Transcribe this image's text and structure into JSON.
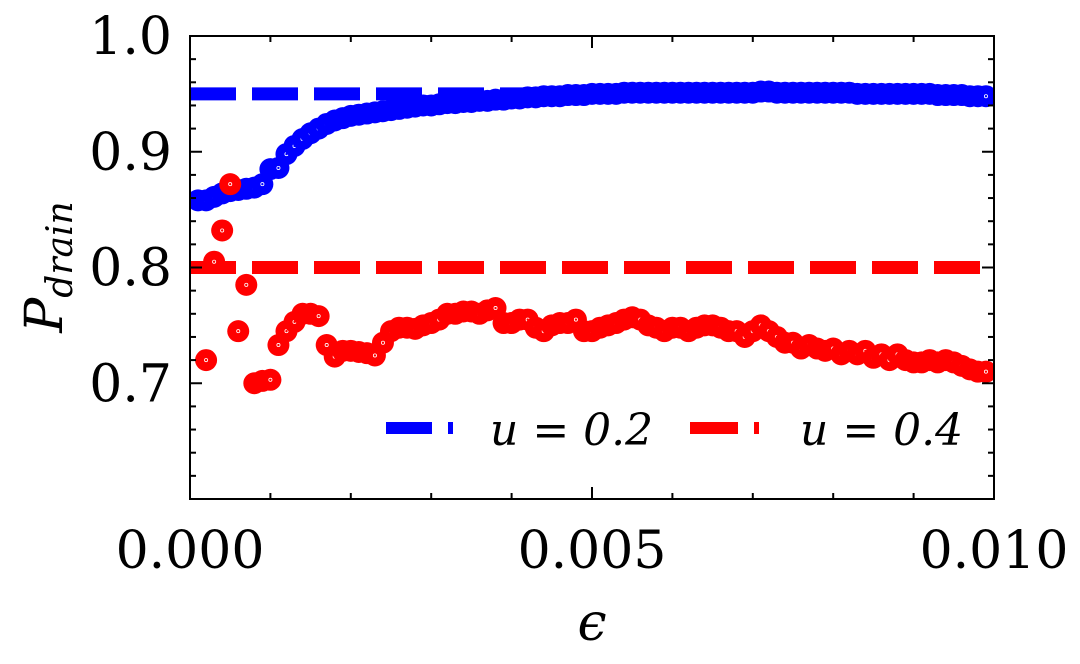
{
  "chart_data": {
    "type": "scatter",
    "title": "",
    "xlabel": "ϵ",
    "ylabel_main": "P",
    "ylabel_sub": "drain",
    "xlim": [
      0.0,
      0.01
    ],
    "ylim": [
      0.6,
      1.0
    ],
    "x_ticks": [
      0.0,
      0.005,
      0.01
    ],
    "x_tick_labels": [
      "0.000",
      "0.005",
      "0.010"
    ],
    "y_ticks": [
      0.7,
      0.8,
      0.9,
      1.0
    ],
    "y_tick_labels": [
      "0.7",
      "0.8",
      "0.9",
      "1.0"
    ],
    "grid": false,
    "legend_position": "bottom-right",
    "series": [
      {
        "name": "u=0.2",
        "legend_label": "u = 0.2",
        "color": "#0000ff",
        "reference_line": 0.95,
        "points": [
          [
            0.0001,
            0.858
          ],
          [
            0.0002,
            0.858
          ],
          [
            0.0003,
            0.861
          ],
          [
            0.0004,
            0.864
          ],
          [
            0.0005,
            0.866
          ],
          [
            0.0006,
            0.867
          ],
          [
            0.0007,
            0.868
          ],
          [
            0.0008,
            0.869
          ],
          [
            0.0009,
            0.872
          ],
          [
            0.001,
            0.885
          ],
          [
            0.0011,
            0.886
          ],
          [
            0.0012,
            0.898
          ],
          [
            0.0013,
            0.905
          ],
          [
            0.0014,
            0.911
          ],
          [
            0.0015,
            0.916
          ],
          [
            0.0016,
            0.92
          ],
          [
            0.0017,
            0.924
          ],
          [
            0.0018,
            0.927
          ],
          [
            0.0019,
            0.929
          ],
          [
            0.002,
            0.931
          ],
          [
            0.0021,
            0.932
          ],
          [
            0.0022,
            0.933
          ],
          [
            0.0023,
            0.934
          ],
          [
            0.0024,
            0.935
          ],
          [
            0.0025,
            0.936
          ],
          [
            0.0026,
            0.937
          ],
          [
            0.0027,
            0.938
          ],
          [
            0.0028,
            0.939
          ],
          [
            0.0029,
            0.94
          ],
          [
            0.003,
            0.94
          ],
          [
            0.0031,
            0.941
          ],
          [
            0.0032,
            0.942
          ],
          [
            0.0033,
            0.942
          ],
          [
            0.0034,
            0.943
          ],
          [
            0.0035,
            0.943
          ],
          [
            0.0036,
            0.944
          ],
          [
            0.0037,
            0.944
          ],
          [
            0.0038,
            0.945
          ],
          [
            0.0039,
            0.945
          ],
          [
            0.004,
            0.946
          ],
          [
            0.0041,
            0.946
          ],
          [
            0.0042,
            0.947
          ],
          [
            0.0043,
            0.947
          ],
          [
            0.0044,
            0.948
          ],
          [
            0.0045,
            0.948
          ],
          [
            0.0046,
            0.948
          ],
          [
            0.0047,
            0.949
          ],
          [
            0.0048,
            0.949
          ],
          [
            0.0049,
            0.949
          ],
          [
            0.005,
            0.95
          ],
          [
            0.0051,
            0.95
          ],
          [
            0.0052,
            0.95
          ],
          [
            0.0053,
            0.95
          ],
          [
            0.0054,
            0.951
          ],
          [
            0.0055,
            0.951
          ],
          [
            0.0056,
            0.951
          ],
          [
            0.0057,
            0.951
          ],
          [
            0.0058,
            0.951
          ],
          [
            0.0059,
            0.951
          ],
          [
            0.006,
            0.951
          ],
          [
            0.0061,
            0.951
          ],
          [
            0.0062,
            0.951
          ],
          [
            0.0063,
            0.951
          ],
          [
            0.0064,
            0.951
          ],
          [
            0.0065,
            0.951
          ],
          [
            0.0066,
            0.951
          ],
          [
            0.0067,
            0.951
          ],
          [
            0.0068,
            0.951
          ],
          [
            0.0069,
            0.951
          ],
          [
            0.007,
            0.951
          ],
          [
            0.0071,
            0.952
          ],
          [
            0.0072,
            0.952
          ],
          [
            0.0073,
            0.951
          ],
          [
            0.0074,
            0.951
          ],
          [
            0.0075,
            0.951
          ],
          [
            0.0076,
            0.951
          ],
          [
            0.0077,
            0.951
          ],
          [
            0.0078,
            0.951
          ],
          [
            0.0079,
            0.951
          ],
          [
            0.008,
            0.951
          ],
          [
            0.0081,
            0.951
          ],
          [
            0.0082,
            0.951
          ],
          [
            0.0083,
            0.95
          ],
          [
            0.0084,
            0.95
          ],
          [
            0.0085,
            0.95
          ],
          [
            0.0086,
            0.95
          ],
          [
            0.0087,
            0.95
          ],
          [
            0.0088,
            0.95
          ],
          [
            0.0089,
            0.95
          ],
          [
            0.009,
            0.95
          ],
          [
            0.0091,
            0.95
          ],
          [
            0.0092,
            0.95
          ],
          [
            0.0093,
            0.949
          ],
          [
            0.0094,
            0.949
          ],
          [
            0.0095,
            0.949
          ],
          [
            0.0096,
            0.949
          ],
          [
            0.0097,
            0.948
          ],
          [
            0.0098,
            0.948
          ],
          [
            0.0099,
            0.948
          ]
        ]
      },
      {
        "name": "u=0.4",
        "legend_label": "u = 0.4",
        "color": "#ff0000",
        "reference_line": 0.8,
        "points": [
          [
            0.0002,
            0.72
          ],
          [
            0.0003,
            0.805
          ],
          [
            0.0004,
            0.832
          ],
          [
            0.0005,
            0.872
          ],
          [
            0.0006,
            0.745
          ],
          [
            0.0007,
            0.785
          ],
          [
            0.0008,
            0.7
          ],
          [
            0.0009,
            0.702
          ],
          [
            0.001,
            0.703
          ],
          [
            0.0011,
            0.733
          ],
          [
            0.0012,
            0.745
          ],
          [
            0.0013,
            0.753
          ],
          [
            0.0014,
            0.76
          ],
          [
            0.0015,
            0.76
          ],
          [
            0.0016,
            0.758
          ],
          [
            0.0017,
            0.733
          ],
          [
            0.0018,
            0.723
          ],
          [
            0.0019,
            0.728
          ],
          [
            0.002,
            0.728
          ],
          [
            0.0021,
            0.727
          ],
          [
            0.0022,
            0.726
          ],
          [
            0.0023,
            0.724
          ],
          [
            0.0024,
            0.735
          ],
          [
            0.0025,
            0.745
          ],
          [
            0.0026,
            0.748
          ],
          [
            0.0027,
            0.748
          ],
          [
            0.0028,
            0.747
          ],
          [
            0.0029,
            0.75
          ],
          [
            0.003,
            0.752
          ],
          [
            0.0031,
            0.755
          ],
          [
            0.0032,
            0.76
          ],
          [
            0.0033,
            0.76
          ],
          [
            0.0034,
            0.762
          ],
          [
            0.0035,
            0.762
          ],
          [
            0.0036,
            0.76
          ],
          [
            0.0037,
            0.763
          ],
          [
            0.0038,
            0.765
          ],
          [
            0.0039,
            0.752
          ],
          [
            0.004,
            0.752
          ],
          [
            0.0041,
            0.755
          ],
          [
            0.0042,
            0.755
          ],
          [
            0.0043,
            0.748
          ],
          [
            0.0044,
            0.745
          ],
          [
            0.0045,
            0.75
          ],
          [
            0.0046,
            0.752
          ],
          [
            0.0047,
            0.752
          ],
          [
            0.0048,
            0.755
          ],
          [
            0.0049,
            0.745
          ],
          [
            0.005,
            0.745
          ],
          [
            0.0051,
            0.748
          ],
          [
            0.0052,
            0.75
          ],
          [
            0.0053,
            0.752
          ],
          [
            0.0054,
            0.755
          ],
          [
            0.0055,
            0.757
          ],
          [
            0.0056,
            0.755
          ],
          [
            0.0057,
            0.75
          ],
          [
            0.0058,
            0.748
          ],
          [
            0.0059,
            0.745
          ],
          [
            0.006,
            0.748
          ],
          [
            0.0061,
            0.748
          ],
          [
            0.0062,
            0.745
          ],
          [
            0.0063,
            0.748
          ],
          [
            0.0064,
            0.75
          ],
          [
            0.0065,
            0.75
          ],
          [
            0.0066,
            0.748
          ],
          [
            0.0067,
            0.745
          ],
          [
            0.0068,
            0.745
          ],
          [
            0.0069,
            0.74
          ],
          [
            0.007,
            0.745
          ],
          [
            0.0071,
            0.75
          ],
          [
            0.0072,
            0.745
          ],
          [
            0.0073,
            0.74
          ],
          [
            0.0074,
            0.735
          ],
          [
            0.0075,
            0.735
          ],
          [
            0.0076,
            0.73
          ],
          [
            0.0077,
            0.733
          ],
          [
            0.0078,
            0.73
          ],
          [
            0.0079,
            0.728
          ],
          [
            0.008,
            0.73
          ],
          [
            0.0081,
            0.725
          ],
          [
            0.0082,
            0.728
          ],
          [
            0.0083,
            0.725
          ],
          [
            0.0084,
            0.728
          ],
          [
            0.0085,
            0.722
          ],
          [
            0.0086,
            0.725
          ],
          [
            0.0087,
            0.72
          ],
          [
            0.0088,
            0.725
          ],
          [
            0.0089,
            0.72
          ],
          [
            0.009,
            0.718
          ],
          [
            0.0091,
            0.718
          ],
          [
            0.0092,
            0.72
          ],
          [
            0.0093,
            0.718
          ],
          [
            0.0094,
            0.72
          ],
          [
            0.0095,
            0.718
          ],
          [
            0.0096,
            0.715
          ],
          [
            0.0097,
            0.712
          ],
          [
            0.0098,
            0.71
          ],
          [
            0.0099,
            0.71
          ]
        ]
      }
    ]
  }
}
